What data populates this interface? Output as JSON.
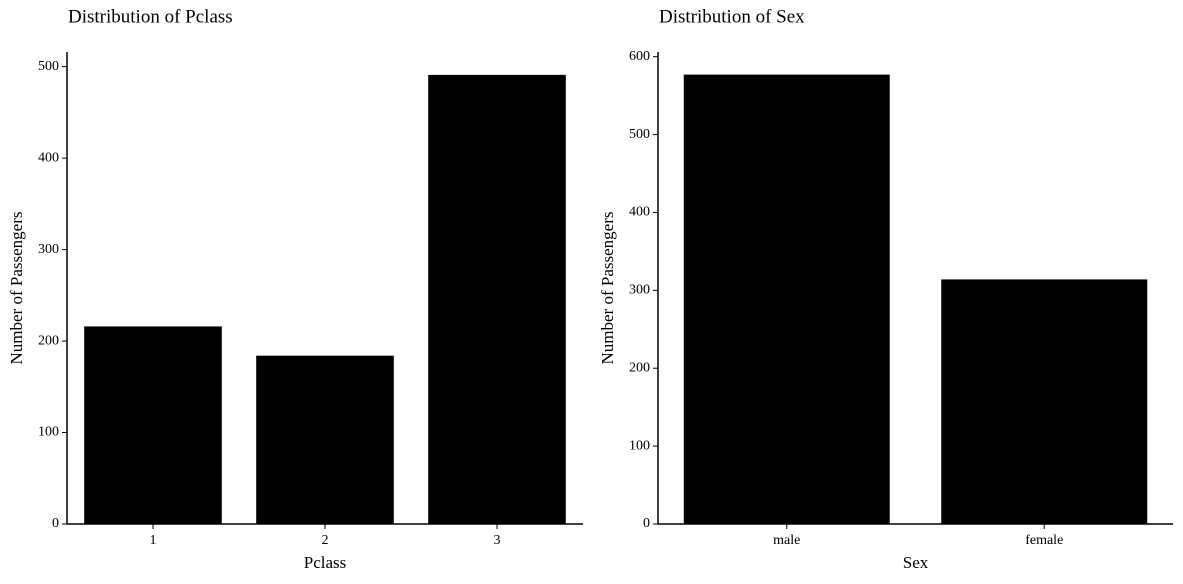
{
  "chart_data": [
    {
      "type": "bar",
      "title": "Distribution of Pclass",
      "x_label": "Pclass",
      "y_label": "Number of Passengers",
      "categories": [
        "1",
        "2",
        "3"
      ],
      "values": [
        216,
        184,
        491
      ],
      "color": "#000000",
      "ylim": [
        0,
        516
      ],
      "yticks": [
        0,
        100,
        200,
        300,
        400,
        500
      ]
    },
    {
      "type": "bar",
      "title": "Distribution of Sex",
      "x_label": "Sex",
      "y_label": "Number of Passengers",
      "categories": [
        "male",
        "female"
      ],
      "values": [
        577,
        314
      ],
      "color": "#000000",
      "ylim": [
        0,
        606
      ],
      "yticks": [
        0,
        100,
        200,
        300,
        400,
        500,
        600
      ]
    }
  ]
}
